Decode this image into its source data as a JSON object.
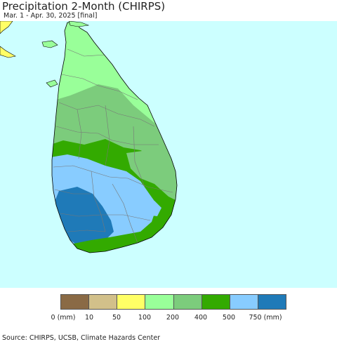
{
  "title": "Precipitation 2-Month (CHIRPS)",
  "subtitle": "Mar. 1 - Apr. 30, 2025 [final]",
  "source": "Source: CHIRPS, UCSB, Climate Hazards Center",
  "colors": {
    "ocean": "#ccffff",
    "india_coast": "#ffff66",
    "boundary": "#777777",
    "coastline": "#000000"
  },
  "legend": {
    "swatches": [
      {
        "range": "0-10 mm",
        "color": "#8a6a45"
      },
      {
        "range": "10-50 mm",
        "color": "#d2c08a"
      },
      {
        "range": "50-100 mm",
        "color": "#ffff66"
      },
      {
        "range": "100-200 mm",
        "color": "#99ff99"
      },
      {
        "range": "200-400 mm",
        "color": "#7ccc7c"
      },
      {
        "range": "400-500 mm",
        "color": "#33aa00"
      },
      {
        "range": "500-750 mm",
        "color": "#88ccff"
      },
      {
        "range": "750+ mm",
        "color": "#1f7ab8"
      }
    ],
    "tick_labels": [
      "0 (mm)",
      "10",
      "50",
      "100",
      "200",
      "400",
      "500",
      "750 (mm)"
    ]
  }
}
